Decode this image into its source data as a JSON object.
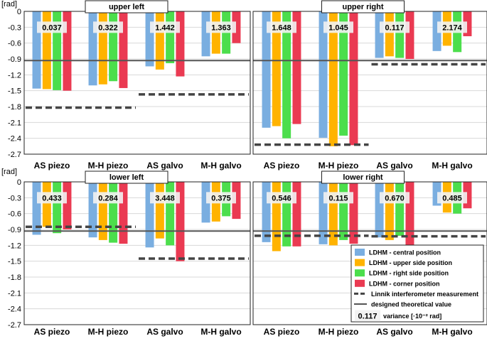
{
  "chart_data": {
    "type": "bar",
    "unit_label": "[rad]",
    "ylim": [
      -2.7,
      0
    ],
    "yticks": [
      "0",
      "-0.3",
      "-0.6",
      "-0.9",
      "-1.2",
      "-1.5",
      "-1.8",
      "-2.1",
      "-2.4",
      "-2.7"
    ],
    "categories": [
      "AS piezo",
      "M-H piezo",
      "AS galvo",
      "M-H galvo"
    ],
    "series_names": [
      "LDHM - central position",
      "LDHM - upper side position",
      "LDHM - right side position",
      "LDHM - corner position"
    ],
    "series_colors": [
      "#7aaee0",
      "#ffb300",
      "#4cde4c",
      "#ea3a52"
    ],
    "theoretical_value": -0.93,
    "legend": {
      "entries": [
        "LDHM - central position",
        "LDHM - upper side position",
        "LDHM - right side position",
        "LDHM - corner position",
        "Linnik interferometer measurement",
        "designed theoretical value"
      ],
      "variance_example": "0.117",
      "variance_text": "variance [·10⁻² rad]"
    },
    "panels": [
      {
        "title": "upper left",
        "values": [
          [
            -1.46,
            -1.47,
            -1.49,
            -1.5
          ],
          [
            -1.4,
            -1.38,
            -1.32,
            -1.45
          ],
          [
            -1.04,
            -1.1,
            -0.98,
            -1.23
          ],
          [
            -0.85,
            -0.8,
            -0.8,
            -0.6
          ]
        ],
        "variance": [
          "0.037",
          "0.322",
          "1.442",
          "1.363"
        ],
        "linnik": [
          [
            0,
            2,
            -1.82
          ],
          [
            2,
            4,
            -1.57
          ]
        ]
      },
      {
        "title": "upper right",
        "values": [
          [
            -2.2,
            -2.17,
            -2.4,
            -2.13
          ],
          [
            -2.39,
            -2.55,
            -2.35,
            -2.53
          ],
          [
            -0.88,
            -0.85,
            -0.88,
            -0.9
          ],
          [
            -0.75,
            -0.65,
            -0.77,
            -0.47
          ]
        ],
        "variance": [
          "1.648",
          "1.045",
          "0.117",
          "2.174"
        ],
        "linnik": [
          [
            0,
            2,
            -2.52
          ],
          [
            2,
            4,
            -1.0
          ]
        ]
      },
      {
        "title": "lower left",
        "values": [
          [
            -1.0,
            -0.85,
            -0.97,
            -0.9
          ],
          [
            -1.05,
            -1.1,
            -1.15,
            -1.17
          ],
          [
            -1.24,
            -1.07,
            -1.2,
            -1.5
          ],
          [
            -0.77,
            -0.75,
            -0.65,
            -0.7
          ]
        ],
        "variance": [
          "0.433",
          "0.284",
          "3.448",
          "0.375"
        ],
        "linnik": [
          [
            0,
            2,
            -0.85
          ],
          [
            2,
            4,
            -1.45
          ]
        ]
      },
      {
        "title": "lower right",
        "values": [
          [
            -1.14,
            -1.31,
            -1.22,
            -1.22
          ],
          [
            -1.18,
            -1.2,
            -1.1,
            -1.17
          ],
          [
            -1.05,
            -1.1,
            -1.02,
            -1.19
          ],
          [
            -0.45,
            -0.58,
            -0.6,
            -0.5
          ]
        ],
        "variance": [
          "0.546",
          "0.115",
          "0.670",
          "0.485"
        ],
        "linnik": [
          [
            0,
            2,
            -1.02
          ],
          [
            2,
            4,
            -1.03
          ]
        ]
      }
    ]
  }
}
